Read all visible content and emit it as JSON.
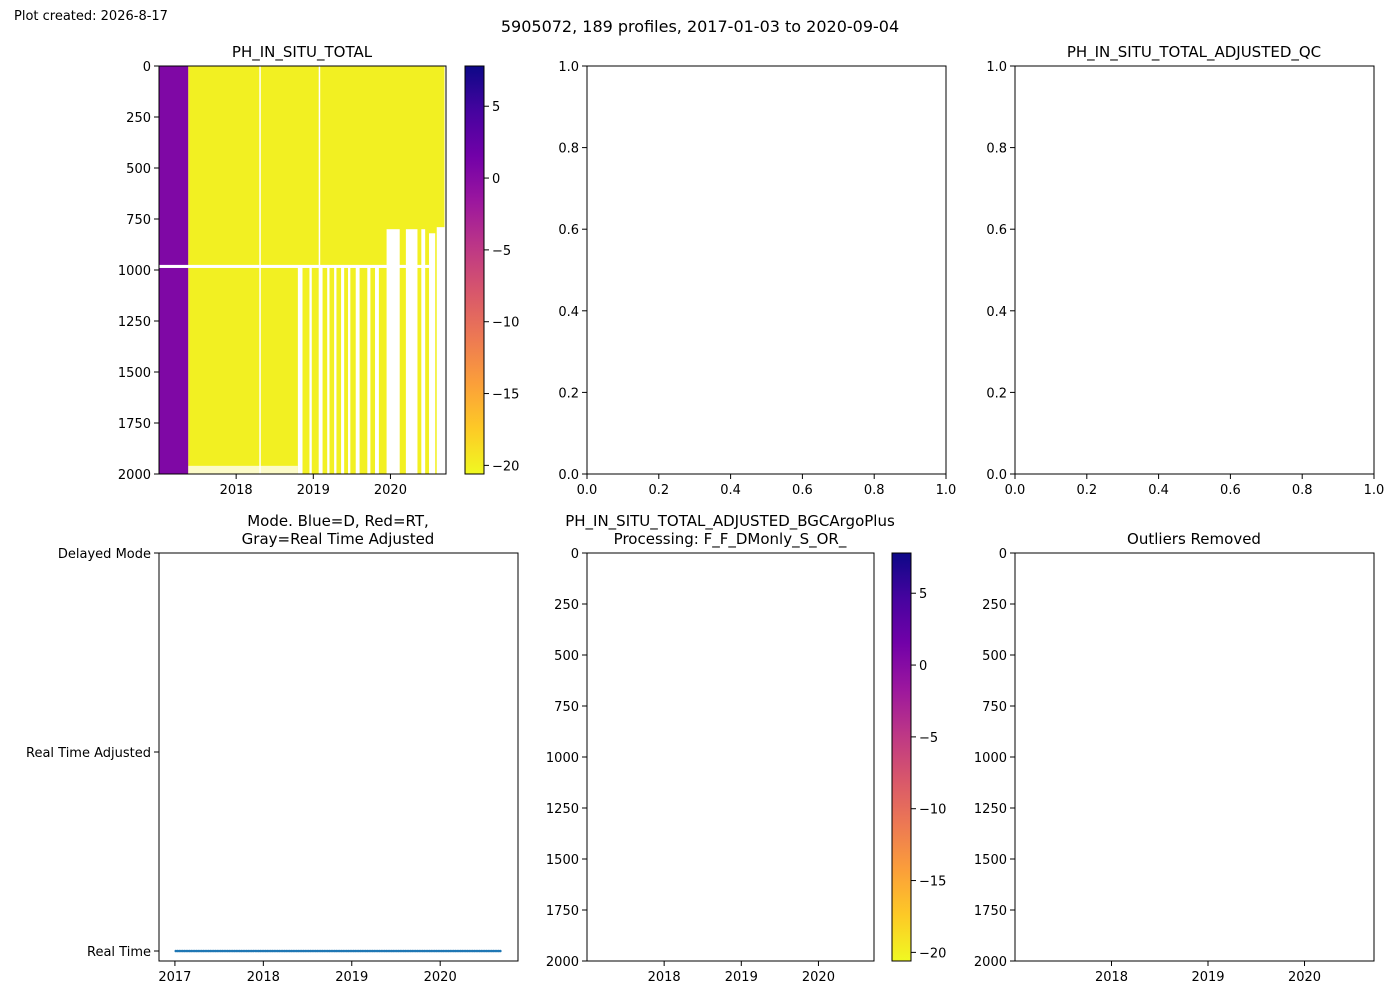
{
  "figure": {
    "created_label": "Plot created: 2026-8-17",
    "suptitle": "5905072, 189 profiles, 2017-01-03 to 2020-09-04"
  },
  "colormap": {
    "name": "plasma_r",
    "stops": [
      "#f0f921",
      "#fdca26",
      "#fb9f3a",
      "#ed7953",
      "#d8576b",
      "#bd3786",
      "#9c179e",
      "#7201a8",
      "#46039f",
      "#0d0887"
    ]
  },
  "chart_data": [
    {
      "id": "ph-in-situ-total",
      "type": "heatmap",
      "title": "PH_IN_SITU_TOTAL",
      "x_ticks": [
        "2018",
        "2019",
        "2020"
      ],
      "x_tick_years": [
        2018,
        2019,
        2020
      ],
      "xlim_years": [
        2017.0,
        2020.72
      ],
      "y_ticks": [
        0,
        250,
        500,
        750,
        1000,
        1250,
        1500,
        1750,
        2000
      ],
      "ylim": [
        2000,
        0
      ],
      "ylabel": "",
      "colorbar": {
        "ticks": [
          5,
          0,
          -5,
          -10,
          -15,
          -20
        ],
        "range": [
          -20.6,
          7.8
        ]
      },
      "segments": [
        {
          "x_start": 2017.0,
          "x_end": 2017.38,
          "value": 0.5,
          "description": "early profiles ~0"
        },
        {
          "x_start": 2017.38,
          "x_end": 2020.7,
          "value": -20.0,
          "description": "later profiles ~-20"
        }
      ],
      "data_gaps": [
        {
          "label": "gap band near 1000 dbar",
          "depth_range": [
            975,
            990
          ]
        }
      ]
    },
    {
      "id": "blank-axes-1",
      "type": "scatter",
      "title": "",
      "x_ticks": [
        "0.0",
        "0.2",
        "0.4",
        "0.6",
        "0.8",
        "1.0"
      ],
      "y_ticks": [
        "0.0",
        "0.2",
        "0.4",
        "0.6",
        "0.8",
        "1.0"
      ],
      "xlim": [
        0,
        1
      ],
      "ylim": [
        0,
        1
      ],
      "points": []
    },
    {
      "id": "ph-adjusted-qc",
      "type": "scatter",
      "title": "PH_IN_SITU_TOTAL_ADJUSTED_QC",
      "x_ticks": [
        "0.0",
        "0.2",
        "0.4",
        "0.6",
        "0.8",
        "1.0"
      ],
      "y_ticks": [
        "0.0",
        "0.2",
        "0.4",
        "0.6",
        "0.8",
        "1.0"
      ],
      "xlim": [
        0,
        1
      ],
      "ylim": [
        0,
        1
      ],
      "points": []
    },
    {
      "id": "mode",
      "type": "scatter",
      "title_lines": [
        "Mode. Blue=D, Red=RT,",
        "Gray=Real Time Adjusted"
      ],
      "x_ticks": [
        "2017",
        "2018",
        "2019",
        "2020"
      ],
      "x_tick_years": [
        2017,
        2018,
        2019,
        2020
      ],
      "xlim_years": [
        2016.82,
        2020.88
      ],
      "y_categories": [
        "Delayed Mode",
        "Real Time Adjusted",
        "Real Time"
      ],
      "series": [
        {
          "mode": "Real Time",
          "color": "#1f77b4",
          "count": 189,
          "x_start": 2017.01,
          "x_end": 2020.68
        }
      ]
    },
    {
      "id": "ph-adjusted-bgc",
      "type": "heatmap",
      "title_lines": [
        "PH_IN_SITU_TOTAL_ADJUSTED_BGCArgoPlus",
        "Processing: F_F_DMonly_S_OR_"
      ],
      "x_ticks": [
        "2018",
        "2019",
        "2020"
      ],
      "x_tick_years": [
        2018,
        2019,
        2020
      ],
      "xlim_years": [
        2017.0,
        2020.72
      ],
      "y_ticks": [
        0,
        250,
        500,
        750,
        1000,
        1250,
        1500,
        1750,
        2000
      ],
      "ylim": [
        2000,
        0
      ],
      "colorbar": {
        "ticks": [
          5,
          0,
          -5,
          -10,
          -15,
          -20
        ],
        "range": [
          -20.6,
          7.8
        ]
      },
      "segments": []
    },
    {
      "id": "outliers-removed",
      "type": "scatter",
      "title": "Outliers Removed",
      "x_ticks": [
        "2018",
        "2019",
        "2020"
      ],
      "x_tick_years": [
        2018,
        2019,
        2020
      ],
      "xlim_years": [
        2017.0,
        2020.72
      ],
      "y_ticks": [
        0,
        250,
        500,
        750,
        1000,
        1250,
        1500,
        1750,
        2000
      ],
      "ylim": [
        2000,
        0
      ],
      "points": []
    }
  ]
}
